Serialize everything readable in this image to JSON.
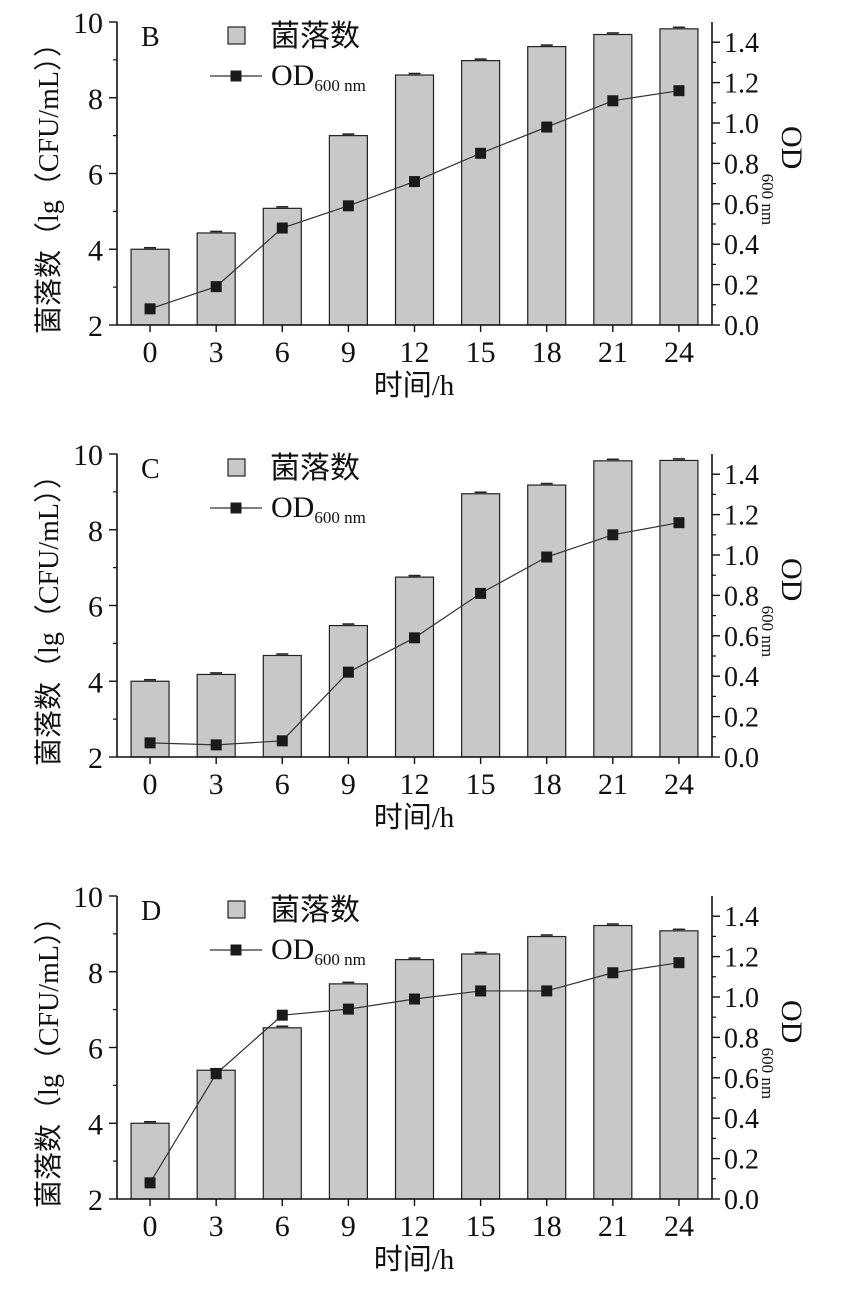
{
  "figure": {
    "legend_bar_label": "菌落数",
    "legend_line_label": "OD",
    "legend_line_sub": "600 nm"
  },
  "chart_data": [
    {
      "type": "bar",
      "panel_label": "B",
      "categories": [
        "0",
        "3",
        "6",
        "9",
        "12",
        "15",
        "18",
        "21",
        "24"
      ],
      "series": [
        {
          "name": "菌落数",
          "axis": "left",
          "values": [
            4.0,
            4.43,
            5.08,
            7.0,
            8.6,
            8.98,
            9.35,
            9.67,
            9.82
          ]
        },
        {
          "name": "OD600 nm",
          "axis": "right",
          "type": "line",
          "values": [
            0.08,
            0.19,
            0.48,
            0.59,
            0.71,
            0.85,
            0.98,
            1.11,
            1.16
          ]
        }
      ],
      "xlabel": "时间/h",
      "ylabel": "菌落数（lg（CFU/mL））",
      "y2label": "OD",
      "y2label_sub": "600 nm",
      "ylim": [
        2,
        10
      ],
      "y2lim": [
        0,
        1.5
      ],
      "yticks": [
        "2",
        "4",
        "6",
        "8",
        "10"
      ],
      "y2ticks": [
        "0.0",
        "0.2",
        "0.4",
        "0.6",
        "0.8",
        "1.0",
        "1.2",
        "1.4"
      ],
      "grid": false,
      "legend": "top"
    },
    {
      "type": "bar",
      "panel_label": "C",
      "categories": [
        "0",
        "3",
        "6",
        "9",
        "12",
        "15",
        "18",
        "21",
        "24"
      ],
      "series": [
        {
          "name": "菌落数",
          "axis": "left",
          "values": [
            4.0,
            4.18,
            4.68,
            5.47,
            6.75,
            8.95,
            9.18,
            9.82,
            9.83
          ]
        },
        {
          "name": "OD600 nm",
          "axis": "right",
          "type": "line",
          "values": [
            0.07,
            0.06,
            0.08,
            0.42,
            0.59,
            0.81,
            0.99,
            1.1,
            1.16
          ]
        }
      ],
      "xlabel": "时间/h",
      "ylabel": "菌落数（lg（CFU/mL））",
      "y2label": "OD",
      "y2label_sub": "600 nm",
      "ylim": [
        2,
        10
      ],
      "y2lim": [
        0,
        1.5
      ],
      "yticks": [
        "2",
        "4",
        "6",
        "8",
        "10"
      ],
      "y2ticks": [
        "0.0",
        "0.2",
        "0.4",
        "0.6",
        "0.8",
        "1.0",
        "1.2",
        "1.4"
      ],
      "grid": false,
      "legend": "top"
    },
    {
      "type": "bar",
      "panel_label": "D",
      "categories": [
        "0",
        "3",
        "6",
        "9",
        "12",
        "15",
        "18",
        "21",
        "24"
      ],
      "series": [
        {
          "name": "菌落数",
          "axis": "left",
          "values": [
            4.0,
            5.4,
            6.52,
            7.68,
            8.32,
            8.47,
            8.93,
            9.22,
            9.08
          ]
        },
        {
          "name": "OD600 nm",
          "axis": "right",
          "type": "line",
          "values": [
            0.08,
            0.62,
            0.91,
            0.94,
            0.99,
            1.03,
            1.03,
            1.12,
            1.17
          ]
        }
      ],
      "xlabel": "时间/h",
      "ylabel": "菌落数（lg（CFU/mL））",
      "y2label": "OD",
      "y2label_sub": "600 nm",
      "ylim": [
        2,
        10
      ],
      "y2lim": [
        0,
        1.5
      ],
      "yticks": [
        "2",
        "4",
        "6",
        "8",
        "10"
      ],
      "y2ticks": [
        "0.0",
        "0.2",
        "0.4",
        "0.6",
        "0.8",
        "1.0",
        "1.2",
        "1.4"
      ],
      "grid": false,
      "legend": "top"
    }
  ]
}
